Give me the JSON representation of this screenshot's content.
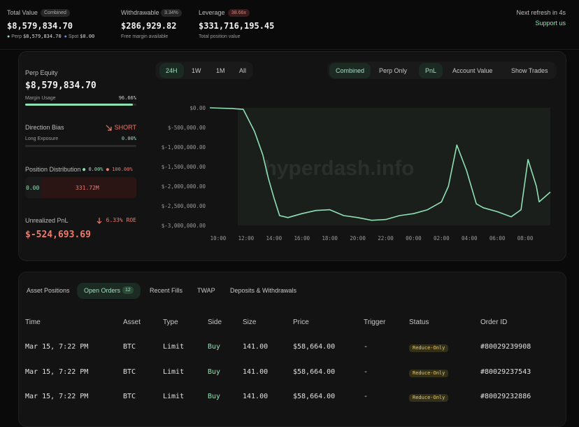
{
  "header": {
    "total_value": {
      "label": "Total Value",
      "badge": "Combined",
      "value": "$8,579,834.70",
      "perp_label": "Perp",
      "perp_value": "$8,579,834.70",
      "spot_label": "Spot",
      "spot_value": "$0.00"
    },
    "withdrawable": {
      "label": "Withdrawable",
      "badge": "3.34%",
      "value": "$286,929.82",
      "note": "Free margin available"
    },
    "leverage": {
      "label": "Leverage",
      "badge": "38.66x",
      "value": "$331,716,195.45",
      "note": "Total position value"
    },
    "refresh": "Next refresh in 4s",
    "support": "Support us"
  },
  "summary": {
    "perp_equity": {
      "label": "Perp Equity",
      "value": "$8,579,834.70"
    },
    "margin_usage": {
      "label": "Margin Usage",
      "value": "96.66%"
    },
    "direction_bias": {
      "label": "Direction Bias",
      "value": "SHORT"
    },
    "long_exposure": {
      "label": "Long Exposure",
      "value": "0.00%"
    },
    "position_distribution": {
      "label": "Position Distribution",
      "long": "0.00%",
      "short": "100.00%",
      "long_value": "0.00",
      "short_value": "331.72M"
    },
    "unrealized_pnl": {
      "label": "Unrealized PnL",
      "roe": "6.33% ROE",
      "value": "$-524,693.69"
    }
  },
  "chart_controls": {
    "ranges": [
      "24H",
      "1W",
      "1M",
      "All"
    ],
    "scope": [
      "Combined",
      "Perp Only"
    ],
    "metric": [
      "PnL",
      "Account Value"
    ],
    "trades": "Show Trades"
  },
  "watermark": "hyperdash.info",
  "chart_data": {
    "type": "line",
    "x": [
      9.4,
      11.0,
      11.8,
      12.1,
      12.6,
      13.2,
      13.6,
      14.0,
      14.4,
      15.0,
      16.0,
      17.0,
      18.0,
      19.0,
      20.0,
      21.0,
      22.0,
      23.0,
      24.0,
      25.0,
      26.0,
      26.5,
      27.1,
      27.8,
      28.5,
      29.0,
      30.0,
      31.0,
      31.7,
      32.2,
      32.8,
      33.0,
      33.8
    ],
    "series": [
      {
        "name": "PnL",
        "color": "#8fe0b4",
        "values": [
          0,
          -20000,
          -40000,
          -250000,
          -600000,
          -1200000,
          -1800000,
          -2300000,
          -2750000,
          -2800000,
          -2700000,
          -2620000,
          -2600000,
          -2750000,
          -2800000,
          -2870000,
          -2850000,
          -2750000,
          -2700000,
          -2600000,
          -2400000,
          -2000000,
          -950000,
          -1600000,
          -2450000,
          -2550000,
          -2650000,
          -2780000,
          -2600000,
          -1320000,
          -2000000,
          -2400000,
          -2150000
        ]
      }
    ],
    "xlim": [
      9.4,
      33.8
    ],
    "xticks": [
      {
        "value": 10,
        "label": "10:00"
      },
      {
        "value": 12,
        "label": "12:00"
      },
      {
        "value": 14,
        "label": "14:00"
      },
      {
        "value": 16,
        "label": "16:00"
      },
      {
        "value": 18,
        "label": "18:00"
      },
      {
        "value": 20,
        "label": "20:00"
      },
      {
        "value": 22,
        "label": "22:00"
      },
      {
        "value": 24,
        "label": "00:00"
      },
      {
        "value": 26,
        "label": "02:00"
      },
      {
        "value": 28,
        "label": "04:00"
      },
      {
        "value": 30,
        "label": "06:00"
      },
      {
        "value": 32,
        "label": "08:00"
      }
    ],
    "ylim": [
      -3000000,
      0
    ],
    "yticks": [
      {
        "value": 0,
        "label": "$0.00"
      },
      {
        "value": -500000,
        "label": "$-500,000.00"
      },
      {
        "value": -1000000,
        "label": "$-1,000,000.00"
      },
      {
        "value": -1500000,
        "label": "$-1,500,000.00"
      },
      {
        "value": -2000000,
        "label": "$-2,000,000.00"
      },
      {
        "value": -2500000,
        "label": "$-2,500,000.00"
      },
      {
        "value": -3000000,
        "label": "$-3,000,000.00"
      }
    ]
  },
  "tabs": {
    "items": [
      "Asset Positions",
      "Open Orders",
      "Recent Fills",
      "TWAP",
      "Deposits & Withdrawals"
    ],
    "open_orders_count": "12"
  },
  "table": {
    "columns": [
      "Time",
      "Asset",
      "Type",
      "Side",
      "Size",
      "Price",
      "Trigger",
      "Status",
      "Order ID"
    ],
    "rows": [
      [
        "Mar 15, 7:22 PM",
        "BTC",
        "Limit",
        "Buy",
        "141.00",
        "$58,664.00",
        "-",
        "Reduce-Only",
        "#80029239908"
      ],
      [
        "Mar 15, 7:22 PM",
        "BTC",
        "Limit",
        "Buy",
        "141.00",
        "$58,664.00",
        "-",
        "Reduce-Only",
        "#80029237543"
      ],
      [
        "Mar 15, 7:22 PM",
        "BTC",
        "Limit",
        "Buy",
        "141.00",
        "$58,664.00",
        "-",
        "Reduce-Only",
        "#80029232886"
      ]
    ]
  }
}
